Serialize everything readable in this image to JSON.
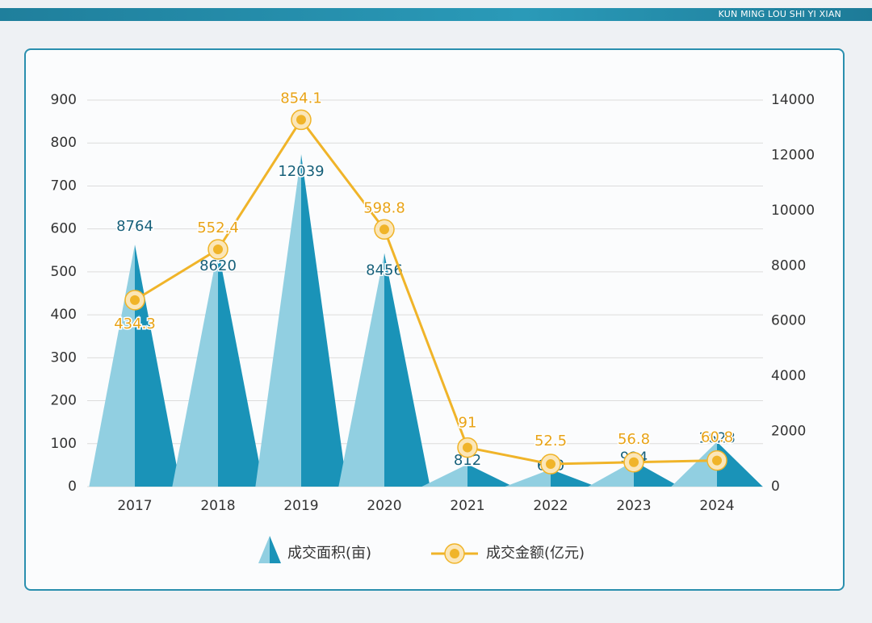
{
  "header": "KUN MING LOU SHI YI XIAN",
  "chart_data": {
    "type": "combo",
    "categories": [
      "2017",
      "2018",
      "2019",
      "2020",
      "2021",
      "2022",
      "2023",
      "2024"
    ],
    "series": [
      {
        "name": "成交面积(亩)",
        "type": "triangle",
        "axis": "y2",
        "color": "#1a93b8",
        "color_light": "#91cfe1",
        "values": [
          8764,
          8620,
          12039,
          8456,
          812,
          630,
          924,
          1623
        ]
      },
      {
        "name": "成交金额(亿元)",
        "type": "line",
        "color": "#f0b429",
        "values": [
          434.3,
          552.4,
          854.1,
          598.8,
          91,
          52.5,
          56.8,
          60.8
        ]
      }
    ],
    "ylim": [
      0,
      900
    ],
    "yticks": [
      0,
      100,
      200,
      300,
      400,
      500,
      600,
      700,
      800,
      900
    ],
    "y2lim": [
      0,
      14000
    ],
    "y2ticks": [
      0,
      2000,
      4000,
      6000,
      8000,
      10000,
      12000,
      14000
    ],
    "grid": true
  }
}
